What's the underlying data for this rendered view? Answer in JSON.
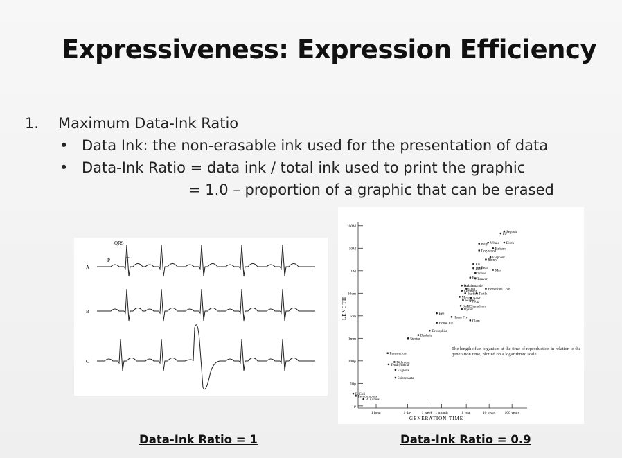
{
  "title": "Expressiveness: Expression Efficiency",
  "outline": {
    "number": "1.",
    "heading": "Maximum Data-Ink Ratio",
    "bullets": [
      "Data Ink: the non-erasable ink used for the presentation of data",
      "Data-Ink Ratio = data ink / total ink used to print the graphic"
    ],
    "continuation": "= 1.0 – proportion of a graphic that can be erased"
  },
  "ecg": {
    "wave_labels": [
      "QRS",
      "P",
      "T"
    ],
    "leads": [
      "A",
      "B",
      "C"
    ],
    "caption": "Data-Ink Ratio = 1"
  },
  "chart_data": {
    "type": "scatter",
    "x_label": "GENERATION TIME",
    "y_label": "LENGTH",
    "annotation": "The length of an organism at the time of reproduction in relation to the generation time, plotted on a logarithmic scale.",
    "caption": "Data-Ink Ratio = 0.9",
    "xscale": "log",
    "yscale": "log",
    "color": "#222222",
    "labels": [
      "Sequoia",
      "Fir",
      "Whale",
      "Birch",
      "Kelp",
      "Balsam",
      "Dog-wood",
      "Elephant",
      "Rhino",
      "Elk",
      "Deer",
      "Bear",
      "Man",
      "Snake",
      "Fox",
      "Beaver",
      "Rat",
      "Salamander",
      "Crab",
      "Horseshoe Crab",
      "Lemming",
      "Starfish",
      "Turtle",
      "Mouse",
      "Newt",
      "Scallop",
      "Frog",
      "Snail",
      "Chameleon",
      "Bee",
      "Oyster",
      "Horse Fly",
      "Clam",
      "House Fly",
      "Drosophila",
      "Daphnia",
      "Stentor",
      "Paramecium",
      "Didinium",
      "Tetrahymena",
      "Euglena",
      "Spirochaeta",
      "E. Coli",
      "Pseudomonas",
      "B. Aureus"
    ],
    "x": [
      400000,
      280000,
      79000,
      400000,
      32000,
      130000,
      32000,
      100000,
      63000,
      18000,
      18000,
      32000,
      130000,
      22000,
      13000,
      22000,
      5600,
      7900,
      8900,
      63000,
      5600,
      7900,
      25000,
      4500,
      14000,
      6300,
      13000,
      5000,
      10000,
      450,
      5600,
      2000,
      13000,
      450,
      220,
      70,
      25,
      3.2,
      6.3,
      3.5,
      7,
      7,
      0.1,
      0.13,
      0.28
    ],
    "values": [
      56,
      45,
      18,
      18,
      16,
      10,
      8,
      4,
      3.2,
      2,
      1.3,
      1.4,
      1.1,
      0.8,
      0.5,
      0.45,
      0.22,
      0.22,
      0.16,
      0.16,
      0.13,
      0.1,
      0.1,
      0.07,
      0.063,
      0.05,
      0.045,
      0.028,
      0.028,
      0.013,
      0.02,
      0.009,
      0.0063,
      0.005,
      0.0022,
      0.0014,
      0.001,
      0.00022,
      8.9e-05,
      7e-05,
      4e-05,
      1.8e-05,
      3.5e-06,
      2.8e-06,
      2e-06
    ],
    "xlim": [
      0.1,
      2000000
    ],
    "ylim": [
      8e-07,
      200
    ],
    "xticks": [
      {
        "value": 1,
        "label": "1 hour"
      },
      {
        "value": 24,
        "label": "1 day"
      },
      {
        "value": 168,
        "label": "1 week"
      },
      {
        "value": 730,
        "label": "1 month"
      },
      {
        "value": 8760,
        "label": "1 year"
      },
      {
        "value": 87600,
        "label": "10 years"
      },
      {
        "value": 876000,
        "label": "100 years"
      }
    ],
    "yticks": [
      {
        "value": 100,
        "label": "100M"
      },
      {
        "value": 10,
        "label": "10M"
      },
      {
        "value": 1,
        "label": "1M"
      },
      {
        "value": 0.1,
        "label": "10cm"
      },
      {
        "value": 0.01,
        "label": "1cm"
      },
      {
        "value": 0.001,
        "label": "1mm"
      },
      {
        "value": 0.0001,
        "label": "100μ"
      },
      {
        "value": 1e-05,
        "label": "10μ"
      },
      {
        "value": 1e-06,
        "label": "1μ"
      }
    ]
  }
}
